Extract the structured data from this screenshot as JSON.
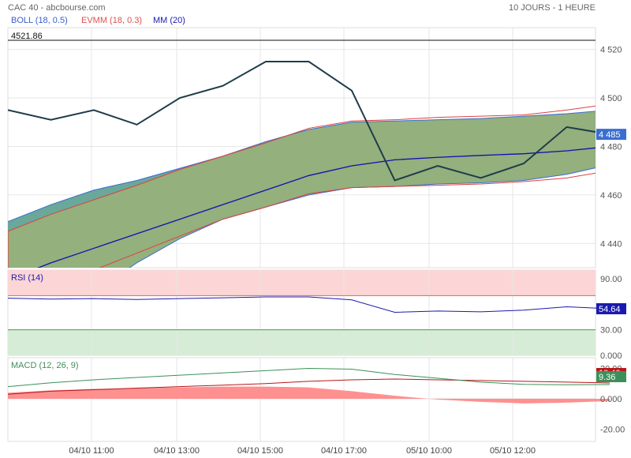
{
  "header": {
    "title": "CAC 40 - abcbourse.com",
    "period": "10 JOURS - 1 HEURE",
    "legend": [
      {
        "label": "BOLL (18, 0.5)",
        "color": "#3a5fcd"
      },
      {
        "label": "EVMM (18, 0.3)",
        "color": "#e05050"
      },
      {
        "label": "MM (20)",
        "color": "#1a1ab0"
      }
    ]
  },
  "x_labels": [
    "04/10 11:00",
    "04/10 13:00",
    "04/10 15:00",
    "04/10 17:00",
    "05/10 10:00",
    "05/10 12:00"
  ],
  "chart_data": [
    {
      "type": "line",
      "name": "price",
      "ylim": [
        4430,
        4529
      ],
      "yticks": [
        "4 440",
        "4 460",
        "4 480",
        "4 500",
        "4 520"
      ],
      "reference_value": "4521.86",
      "last_value": "4 485",
      "x": [
        0,
        1,
        2,
        3,
        4,
        5,
        6,
        7,
        8,
        9,
        10,
        11,
        12,
        13,
        14
      ],
      "price": [
        4495,
        4491,
        4495,
        4489,
        4500,
        4505,
        4515,
        4515,
        4503,
        4466,
        4472,
        4467,
        4473,
        4488,
        4485
      ],
      "boll_upper": [
        4449,
        4456,
        4462,
        4466,
        4471,
        4476,
        4482,
        4487,
        4490,
        4490.5,
        4491,
        4491.5,
        4492.5,
        4493.5,
        4495
      ],
      "boll_lower": [
        4400,
        4410,
        4420,
        4432,
        4442,
        4450,
        4455,
        4460,
        4463,
        4463.5,
        4464.5,
        4465,
        4466,
        4468.5,
        4472.5
      ],
      "evmm_upper": [
        4445,
        4452,
        4458,
        4464,
        4470.5,
        4476,
        4481.5,
        4487.5,
        4490.5,
        4491,
        4492,
        4492.5,
        4493,
        4495,
        4497.5
      ],
      "evmm_lower": [
        4410,
        4420,
        4429,
        4436,
        4443,
        4450,
        4455,
        4460.5,
        4463,
        4463.5,
        4464,
        4464.5,
        4465.5,
        4467,
        4470
      ],
      "ma": [
        4425,
        4432,
        4438,
        4444,
        4450,
        4456,
        4462,
        4468,
        4472,
        4474.5,
        4475.5,
        4476.3,
        4477,
        4478.2,
        4480
      ]
    },
    {
      "type": "line",
      "name": "RSI (14)",
      "ylim": [
        0,
        100
      ],
      "yticks": [
        "0.000",
        "30.00",
        "90.00"
      ],
      "overbought": 70,
      "oversold": 30,
      "last_value": "54.64",
      "x": [
        0,
        1,
        2,
        3,
        4,
        5,
        6,
        7,
        8,
        9,
        10,
        11,
        12,
        13,
        14
      ],
      "values": [
        67,
        66,
        66.5,
        65.5,
        66.5,
        67.5,
        68.5,
        68.5,
        65,
        50.5,
        52,
        51,
        53,
        57,
        54.64
      ]
    },
    {
      "type": "area",
      "name": "MACD (12, 26, 9)",
      "ylim": [
        -28,
        27
      ],
      "yticks": [
        "-20.00",
        "0.000",
        "20.00"
      ],
      "last_values": [
        "10.40",
        "9.36"
      ],
      "x": [
        0,
        1,
        2,
        3,
        4,
        5,
        6,
        7,
        8,
        9,
        10,
        11,
        12,
        13,
        14
      ],
      "macd": [
        8,
        10.5,
        12.5,
        14,
        15.5,
        17,
        18.5,
        20,
        19.5,
        16,
        13.5,
        11,
        9.5,
        9.2,
        9.36
      ],
      "signal": [
        3,
        5,
        6,
        7,
        8,
        9,
        10,
        11.5,
        12.5,
        13,
        12.5,
        12,
        11.5,
        11,
        10.4
      ],
      "histogram": [
        4,
        5.5,
        6.5,
        7,
        7.5,
        8,
        8,
        7.5,
        5,
        2,
        -0.5,
        -2,
        -3,
        -2.5,
        -1.5
      ]
    }
  ],
  "colors": {
    "price": "#1e3d4a",
    "boll": "#3a6fd0",
    "evmm": "#e04040",
    "ma": "#1010b0",
    "band_fill": "#93b07d",
    "band_edge_fill": "#6aa89a",
    "rsi_line": "#1a1ab0",
    "rsi_top_fill": "#fcd6d6",
    "rsi_bottom_fill": "#d6ecd6",
    "macd_line": "#3d8f5a",
    "signal_line": "#b81818",
    "histogram_fill": "#ff9090",
    "last_price_bg": "#3a6fd0",
    "last_rsi_bg": "#1a1ab0",
    "last_signal_bg": "#b81818",
    "last_macd_bg": "#3d8f5a"
  }
}
